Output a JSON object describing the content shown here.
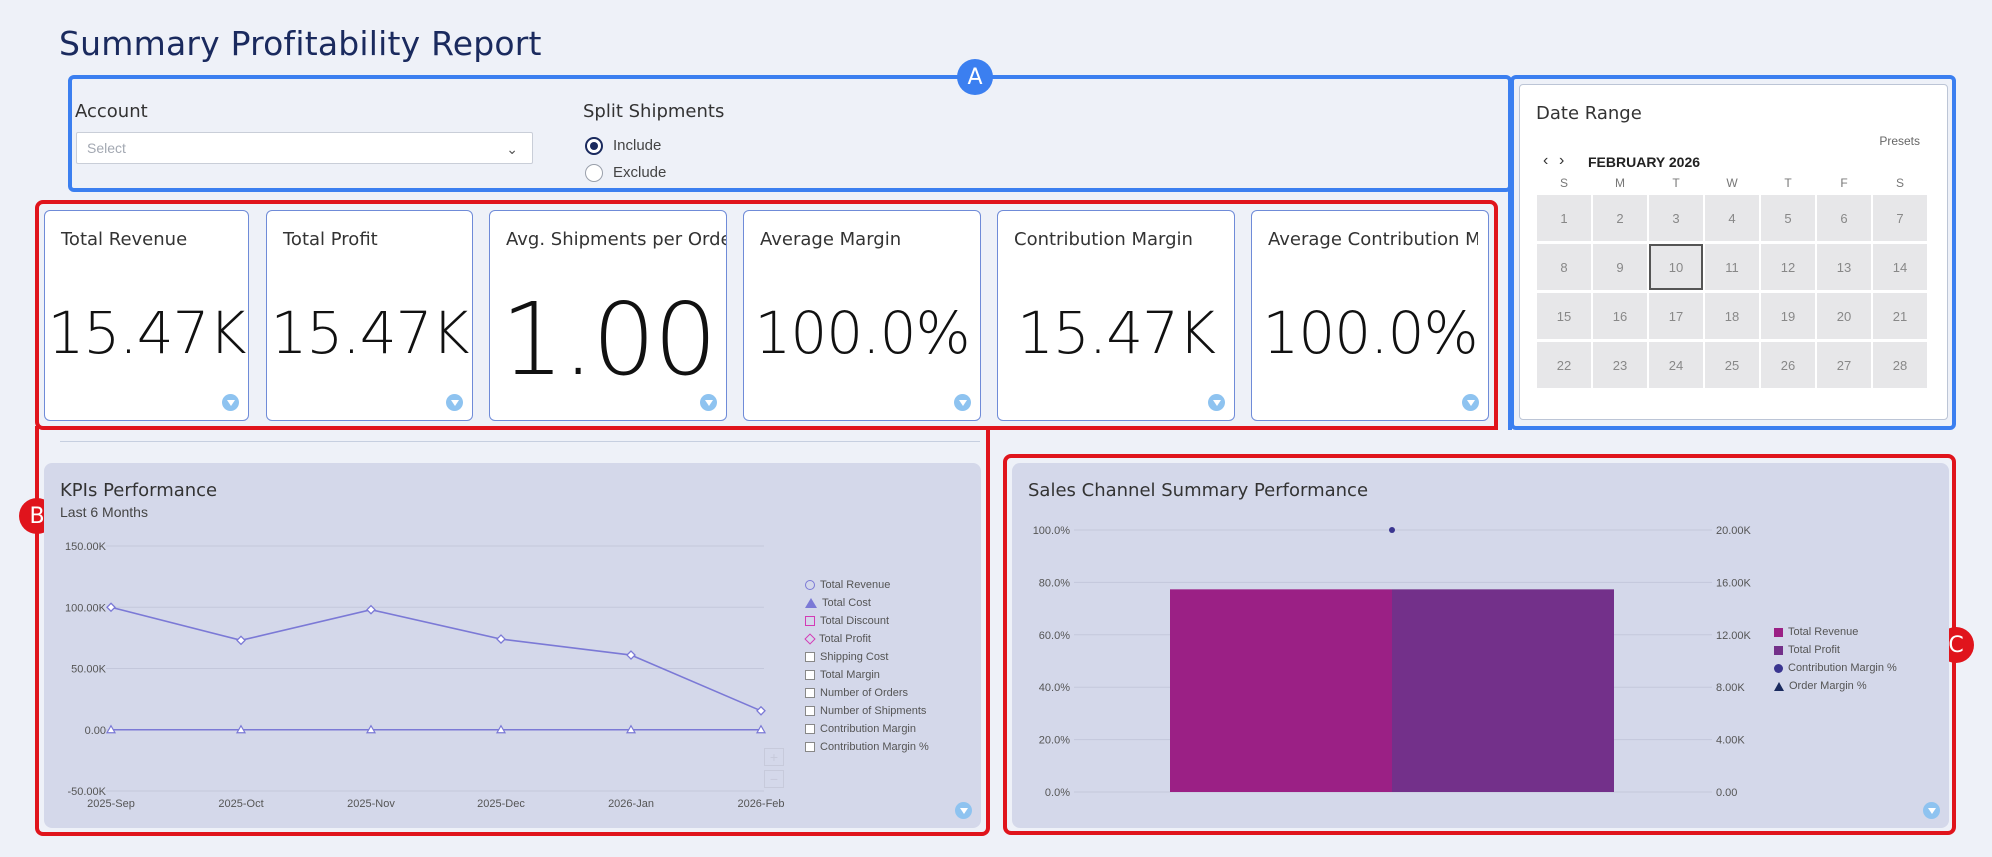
{
  "page": {
    "title": "Summary Profitability Report"
  },
  "annotations": {
    "a": "A",
    "b": "B",
    "c": "C"
  },
  "filters": {
    "account_label": "Account",
    "account_placeholder": "Select",
    "split_label": "Split Shipments",
    "include_label": "Include",
    "exclude_label": "Exclude",
    "selected": "Include"
  },
  "date_range": {
    "title": "Date Range",
    "presets": "Presets",
    "month": "FEBRUARY 2026",
    "prev_icon": "chevron-left-icon",
    "next_icon": "chevron-right-icon",
    "weekdays": [
      "S",
      "M",
      "T",
      "W",
      "T",
      "F",
      "S"
    ],
    "days": [
      "1",
      "2",
      "3",
      "4",
      "5",
      "6",
      "7",
      "8",
      "9",
      "10",
      "11",
      "12",
      "13",
      "14",
      "15",
      "16",
      "17",
      "18",
      "19",
      "20",
      "21",
      "22",
      "23",
      "24",
      "25",
      "26",
      "27",
      "28"
    ],
    "selected_day": "10"
  },
  "kpis": [
    {
      "title": "Total Revenue",
      "value": "15.47K"
    },
    {
      "title": "Total Profit",
      "value": "15.47K"
    },
    {
      "title": "Avg. Shipments per Order",
      "value": "1.00"
    },
    {
      "title": "Average Margin",
      "value": "100.0%"
    },
    {
      "title": "Contribution Margin",
      "value": "15.47K"
    },
    {
      "title": "Average Contribution Margin",
      "value": "100.0%"
    }
  ],
  "kpi_panel": {
    "title": "KPIs Performance",
    "subtitle": "Last 6 Months",
    "zoom_in": "+",
    "zoom_out": "−",
    "legend": [
      "Total Revenue",
      "Total Cost",
      "Total Discount",
      "Total Profit",
      "Shipping Cost",
      "Total Margin",
      "Number of Orders",
      "Number of Shipments",
      "Contribution Margin",
      "Contribution Margin %"
    ]
  },
  "sales_panel": {
    "title": "Sales Channel Summary Performance",
    "legend": [
      "Total Revenue",
      "Total Profit",
      "Contribution Margin %",
      "Order Margin %"
    ]
  },
  "colors": {
    "accent_blue": "#3b7ff0",
    "annotation_red": "#e0141c",
    "line_series": "#7b79d6",
    "revenue_bar": "#9b2085",
    "profit_bar": "#73308a",
    "margin_marker": "#3a3590"
  },
  "chart_data": [
    {
      "type": "line",
      "x": [
        "2025-Sep",
        "2025-Oct",
        "2025-Nov",
        "2025-Dec",
        "2026-Jan",
        "2026-Feb"
      ],
      "ylim": [
        -50000,
        150000
      ],
      "yticks": [
        "150.00K",
        "100.00K",
        "50.00K",
        "0.00",
        "-50.00K"
      ],
      "series": [
        {
          "name": "Total Revenue",
          "values": [
            100000,
            73000,
            98000,
            74000,
            61000,
            15470
          ]
        },
        {
          "name": "Total Cost",
          "values": [
            0,
            0,
            0,
            0,
            0,
            0
          ]
        }
      ],
      "legend": "right"
    },
    {
      "type": "bar",
      "categories": [
        ""
      ],
      "series": [
        {
          "name": "Total Revenue",
          "values": [
            15470
          ]
        },
        {
          "name": "Total Profit",
          "values": [
            15470
          ]
        },
        {
          "name": "Contribution Margin %",
          "values": [
            100
          ]
        }
      ],
      "y_left_ticks": [
        "100.0%",
        "80.0%",
        "60.0%",
        "40.0%",
        "20.0%",
        "0.0%"
      ],
      "y_right_ticks": [
        "20.00K",
        "16.00K",
        "12.00K",
        "8.00K",
        "4.00K",
        "0.00"
      ],
      "ylim_left": [
        0,
        100
      ],
      "ylim_right": [
        0,
        20000
      ],
      "legend": "right"
    }
  ]
}
